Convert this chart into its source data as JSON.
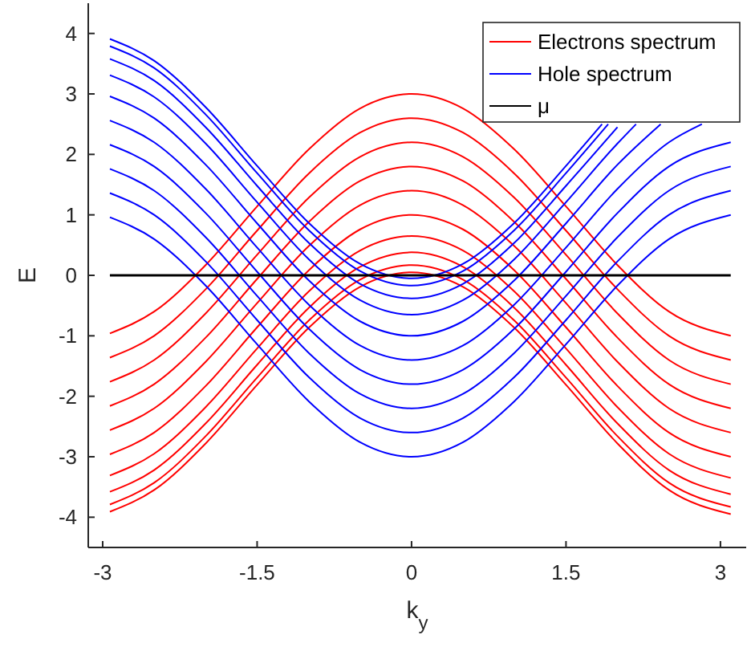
{
  "chart_data": {
    "type": "line",
    "xlabel": "k$_{y}$",
    "ylabel": "E",
    "xlim": [
      -3.14,
      3.25
    ],
    "ylim": [
      -4.5,
      4.5
    ],
    "xticks": [
      -3,
      -1.5,
      0,
      1.5,
      3
    ],
    "yticks": [
      -4,
      -3,
      -2,
      -1,
      0,
      1,
      2,
      3,
      4
    ],
    "grid": false,
    "legend": "top right",
    "marker": "none",
    "line_style": "solid",
    "x": [
      -2.93,
      -2.5,
      -2,
      -1.5,
      -1,
      -0.5,
      0,
      0.5,
      1,
      1.5,
      2,
      2.5,
      3.1
    ],
    "series": [
      {
        "name": "Electrons spectrum",
        "color": "#ff0000",
        "values": [
          -0.96,
          -0.6,
          0.17,
          1.14,
          2.08,
          2.76,
          3,
          2.76,
          2.08,
          1.14,
          0.17,
          -0.6,
          -1
        ]
      },
      {
        "color": "#ff0000",
        "values": [
          -1.36,
          -1,
          -0.23,
          0.74,
          1.68,
          2.36,
          2.6,
          2.36,
          1.68,
          0.74,
          -0.23,
          -1,
          -1.4
        ]
      },
      {
        "color": "#ff0000",
        "values": [
          -1.76,
          -1.4,
          -0.63,
          0.34,
          1.28,
          1.96,
          2.2,
          1.96,
          1.28,
          0.34,
          -0.63,
          -1.4,
          -1.8
        ]
      },
      {
        "color": "#ff0000",
        "values": [
          -2.16,
          -1.8,
          -1.03,
          -0.06,
          0.88,
          1.56,
          1.8,
          1.56,
          0.88,
          -0.06,
          -1.03,
          -1.8,
          -2.2
        ]
      },
      {
        "color": "#ff0000",
        "values": [
          -2.56,
          -2.2,
          -1.43,
          -0.46,
          0.48,
          1.16,
          1.4,
          1.16,
          0.48,
          -0.46,
          -1.43,
          -2.2,
          -2.6
        ]
      },
      {
        "color": "#ff0000",
        "values": [
          -2.96,
          -2.6,
          -1.83,
          -0.86,
          0.08,
          0.76,
          1,
          0.76,
          0.08,
          -0.86,
          -1.83,
          -2.6,
          -3
        ]
      },
      {
        "color": "#ff0000",
        "values": [
          -3.31,
          -2.95,
          -2.18,
          -1.21,
          -0.27,
          0.41,
          0.65,
          0.41,
          -0.27,
          -1.21,
          -2.18,
          -2.95,
          -3.35
        ]
      },
      {
        "color": "#ff0000",
        "values": [
          -3.58,
          -3.22,
          -2.45,
          -1.48,
          -0.54,
          0.14,
          0.38,
          0.14,
          -0.54,
          -1.48,
          -2.45,
          -3.22,
          -3.62
        ]
      },
      {
        "color": "#ff0000",
        "values": [
          -3.79,
          -3.43,
          -2.66,
          -1.69,
          -0.75,
          -0.07,
          0.17,
          -0.07,
          -0.75,
          -1.69,
          -2.66,
          -3.43,
          -3.83
        ]
      },
      {
        "color": "#ff0000",
        "values": [
          -3.91,
          -3.55,
          -2.78,
          -1.81,
          -0.87,
          -0.19,
          0.05,
          -0.19,
          -0.87,
          -1.81,
          -2.78,
          -3.55,
          -3.95
        ]
      },
      {
        "name": "Hole spectrum",
        "color": "#0000ff",
        "values": [
          0.96,
          0.6,
          -0.17,
          -1.14,
          -2.08,
          -2.76,
          -3,
          -2.76,
          -2.08,
          -1.14,
          -0.17,
          0.6,
          1
        ]
      },
      {
        "color": "#0000ff",
        "values": [
          1.36,
          1,
          0.23,
          -0.74,
          -1.68,
          -2.36,
          -2.6,
          -2.36,
          -1.68,
          -0.74,
          0.23,
          1,
          1.4
        ]
      },
      {
        "color": "#0000ff",
        "values": [
          1.76,
          1.4,
          0.63,
          -0.34,
          -1.28,
          -1.96,
          -2.2,
          -1.96,
          -1.28,
          -0.34,
          0.63,
          1.4,
          1.8
        ]
      },
      {
        "color": "#0000ff",
        "values": [
          2.16,
          1.8,
          1.03,
          0.06,
          -0.88,
          -1.56,
          -1.8,
          -1.56,
          -0.88,
          0.06,
          1.03,
          1.8,
          2.2
        ]
      },
      {
        "color": "#0000ff",
        "x": [
          -2.93,
          -2.5,
          -2,
          -1.5,
          -1,
          -0.5,
          0,
          0.5,
          1,
          1.5,
          2,
          2.5,
          2.82
        ],
        "values": [
          2.56,
          2.2,
          1.43,
          0.46,
          -0.48,
          -1.16,
          -1.4,
          -1.16,
          -0.48,
          0.46,
          1.43,
          2.2,
          2.5
        ]
      },
      {
        "color": "#0000ff",
        "x": [
          -2.93,
          -2.5,
          -2,
          -1.5,
          -1,
          -0.5,
          0,
          0.5,
          1,
          1.5,
          2,
          2.42
        ],
        "values": [
          2.96,
          2.6,
          1.83,
          0.86,
          -0.08,
          -0.76,
          -1,
          -0.76,
          -0.08,
          0.86,
          1.83,
          2.5
        ]
      },
      {
        "color": "#0000ff",
        "x": [
          -2.93,
          -2.5,
          -2,
          -1.5,
          -1,
          -0.5,
          0,
          0.5,
          1,
          1.5,
          2,
          2.18
        ],
        "values": [
          3.31,
          2.95,
          2.18,
          1.21,
          0.27,
          -0.41,
          -0.65,
          -0.41,
          0.27,
          1.21,
          2.18,
          2.5
        ]
      },
      {
        "color": "#0000ff",
        "x": [
          -2.93,
          -2.5,
          -2,
          -1.5,
          -1,
          -0.5,
          0,
          0.5,
          1,
          1.5,
          2
        ],
        "values": [
          3.58,
          3.22,
          2.45,
          1.48,
          0.54,
          -0.14,
          -0.38,
          -0.14,
          0.54,
          1.48,
          2.45
        ]
      },
      {
        "color": "#0000ff",
        "x": [
          -2.93,
          -2.5,
          -2,
          -1.5,
          -1,
          -0.5,
          0,
          0.5,
          1,
          1.5,
          1.91
        ],
        "values": [
          3.79,
          3.43,
          2.66,
          1.69,
          0.75,
          0.07,
          -0.17,
          0.07,
          0.75,
          1.69,
          2.5
        ]
      },
      {
        "color": "#0000ff",
        "x": [
          -2.93,
          -2.5,
          -2,
          -1.5,
          -1,
          -0.5,
          0,
          0.5,
          1,
          1.5,
          1.85
        ],
        "values": [
          3.91,
          3.55,
          2.78,
          1.81,
          0.87,
          0.19,
          -0.05,
          0.19,
          0.87,
          1.81,
          2.5
        ]
      },
      {
        "name": "μ",
        "color": "#000000",
        "x": [
          -2.93,
          3.1
        ],
        "values": [
          0,
          0
        ]
      }
    ]
  }
}
